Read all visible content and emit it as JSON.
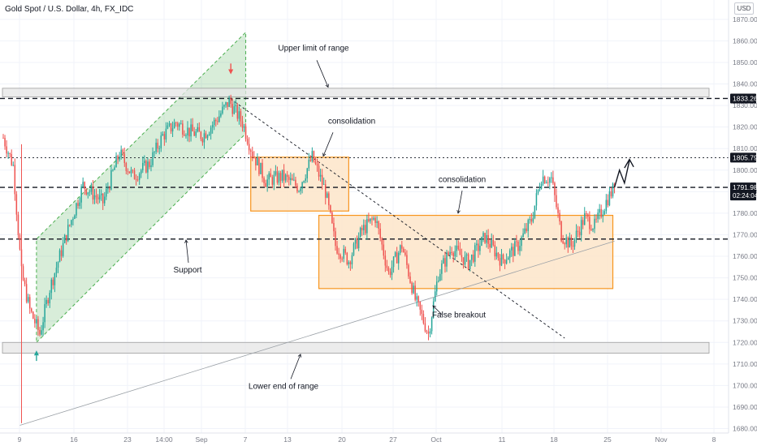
{
  "header": {
    "symbol": "Gold Spot / U.S. Dollar, 4h, FX_IDC",
    "currency": "USD"
  },
  "colors": {
    "up": "#26a69a",
    "down": "#ef5350",
    "channel_fill": "#4caf50",
    "box_stroke": "#f7941d",
    "box_fill": "#fde5c9",
    "range_band_fill": "#e5e5e5",
    "range_band_stroke": "#9e9e9e",
    "axis_text": "#787b86",
    "label_bg": "#131722"
  },
  "chart_data": {
    "type": "candlestick",
    "title": "Gold Spot / U.S. Dollar, 4h, FX_IDC",
    "y_axis": {
      "ylim": [
        1678,
        1876
      ],
      "ticks": [
        1680,
        1690,
        1700,
        1710,
        1720,
        1730,
        1740,
        1750,
        1760,
        1770,
        1780,
        1790,
        1800,
        1810,
        1820,
        1830,
        1840,
        1850,
        1860,
        1870
      ],
      "unit": "USD"
    },
    "x_axis": {
      "ticks": [
        "9",
        "16",
        "23",
        "14:00",
        "Sep",
        "7",
        "13",
        "20",
        "27",
        "Oct",
        "11",
        "18",
        "25",
        "Nov",
        "8"
      ]
    },
    "series": [
      {
        "name": "",
        "anchors": [
          {
            "i": 0,
            "p": 1815
          },
          {
            "i": 6,
            "p": 1802
          },
          {
            "i": 11,
            "p": 1752
          },
          {
            "i": 16,
            "p": 1735
          },
          {
            "i": 22,
            "p": 1724
          },
          {
            "i": 28,
            "p": 1745
          },
          {
            "i": 38,
            "p": 1770
          },
          {
            "i": 48,
            "p": 1793
          },
          {
            "i": 60,
            "p": 1785
          },
          {
            "i": 70,
            "p": 1808
          },
          {
            "i": 78,
            "p": 1797
          },
          {
            "i": 88,
            "p": 1803
          },
          {
            "i": 96,
            "p": 1816
          },
          {
            "i": 104,
            "p": 1822
          },
          {
            "i": 112,
            "p": 1818
          },
          {
            "i": 120,
            "p": 1816
          },
          {
            "i": 128,
            "p": 1823
          },
          {
            "i": 136,
            "p": 1832
          },
          {
            "i": 144,
            "p": 1822
          },
          {
            "i": 150,
            "p": 1808
          },
          {
            "i": 158,
            "p": 1795
          },
          {
            "i": 168,
            "p": 1797
          },
          {
            "i": 178,
            "p": 1792
          },
          {
            "i": 186,
            "p": 1806
          },
          {
            "i": 194,
            "p": 1790
          },
          {
            "i": 200,
            "p": 1765
          },
          {
            "i": 208,
            "p": 1758
          },
          {
            "i": 216,
            "p": 1772
          },
          {
            "i": 224,
            "p": 1778
          },
          {
            "i": 232,
            "p": 1752
          },
          {
            "i": 240,
            "p": 1765
          },
          {
            "i": 248,
            "p": 1740
          },
          {
            "i": 256,
            "p": 1724
          },
          {
            "i": 262,
            "p": 1752
          },
          {
            "i": 270,
            "p": 1764
          },
          {
            "i": 280,
            "p": 1757
          },
          {
            "i": 290,
            "p": 1769
          },
          {
            "i": 300,
            "p": 1758
          },
          {
            "i": 310,
            "p": 1765
          },
          {
            "i": 318,
            "p": 1777
          },
          {
            "i": 324,
            "p": 1797
          },
          {
            "i": 330,
            "p": 1796
          },
          {
            "i": 336,
            "p": 1770
          },
          {
            "i": 342,
            "p": 1765
          },
          {
            "i": 350,
            "p": 1778
          },
          {
            "i": 356,
            "p": 1774
          },
          {
            "i": 364,
            "p": 1787
          },
          {
            "i": 368,
            "p": 1791.98
          }
        ]
      }
    ],
    "last_price": 1791.98,
    "countdown": "02:24:04",
    "levels": [
      {
        "price": 1833.26,
        "label": "1833.26",
        "style": "dashed"
      },
      {
        "price": 1805.79,
        "label": "1805.79",
        "style": "dotted"
      },
      {
        "price": 1791.98,
        "style": "dashed"
      },
      {
        "price": 1768,
        "style": "dashed"
      }
    ],
    "zones": [
      {
        "kind": "range-band",
        "from": 1834,
        "to": 1838
      },
      {
        "kind": "range-band",
        "from": 1715,
        "to": 1720
      },
      {
        "kind": "consolidation-box",
        "from": 1781,
        "to": 1806
      },
      {
        "kind": "consolidation-box",
        "from": 1745,
        "to": 1779
      }
    ],
    "annotations": [
      {
        "text": "Upper limit of range"
      },
      {
        "text": "consolidation"
      },
      {
        "text": "consolidation"
      },
      {
        "text": "Support"
      },
      {
        "text": "False breakout"
      },
      {
        "text": "Lower end of range"
      }
    ]
  }
}
